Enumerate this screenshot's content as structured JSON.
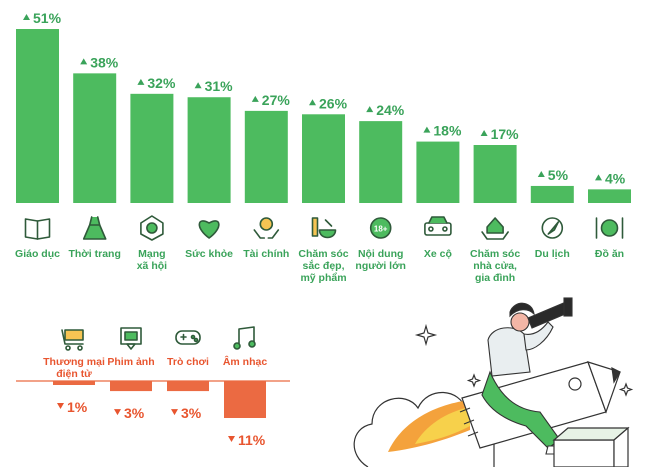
{
  "colors": {
    "positive": "#4dbb5f",
    "positive_text": "#3aa35a",
    "negative": "#eb6a42",
    "negative_text": "#e8552f",
    "icon": "#2f5a3a"
  },
  "chart_data": [
    {
      "type": "bar",
      "direction": "increase",
      "categories": [
        "Giáo dục",
        "Thời trang",
        "Mạng\nxã hội",
        "Sức khỏe",
        "Tài chính",
        "Chăm sóc\nsắc đẹp,\nmỹ phẩm",
        "Nội dung\nngười lớn",
        "Xe cộ",
        "Chăm sóc\nnhà cửa,\ngia đình",
        "Du lịch",
        "Đồ ăn"
      ],
      "values": [
        51,
        38,
        32,
        31,
        27,
        26,
        24,
        18,
        17,
        5,
        4
      ],
      "value_labels": [
        "51%",
        "38%",
        "32%",
        "31%",
        "27%",
        "26%",
        "24%",
        "18%",
        "17%",
        "5%",
        "4%"
      ],
      "icons": [
        "book-icon",
        "dress-icon",
        "network-icon",
        "heart-icon",
        "money-hands-icon",
        "cosmetics-icon",
        "adult-18-icon",
        "car-icon",
        "house-hands-icon",
        "compass-icon",
        "plate-cutlery-icon"
      ],
      "ylim": [
        0,
        51
      ]
    },
    {
      "type": "bar",
      "direction": "decrease",
      "categories": [
        "Thương mại\nđiện tử",
        "Phim ảnh",
        "Trò chơi",
        "Âm nhạc"
      ],
      "values": [
        -1,
        -3,
        -3,
        -11
      ],
      "value_labels": [
        "1%",
        "3%",
        "3%",
        "11%"
      ],
      "icons": [
        "cart-icon",
        "film-icon",
        "gamepad-icon",
        "music-note-icon"
      ],
      "ylim": [
        -11,
        0
      ]
    }
  ],
  "illustration": {
    "subject": "woman-on-pencil-rocket-with-telescope"
  }
}
